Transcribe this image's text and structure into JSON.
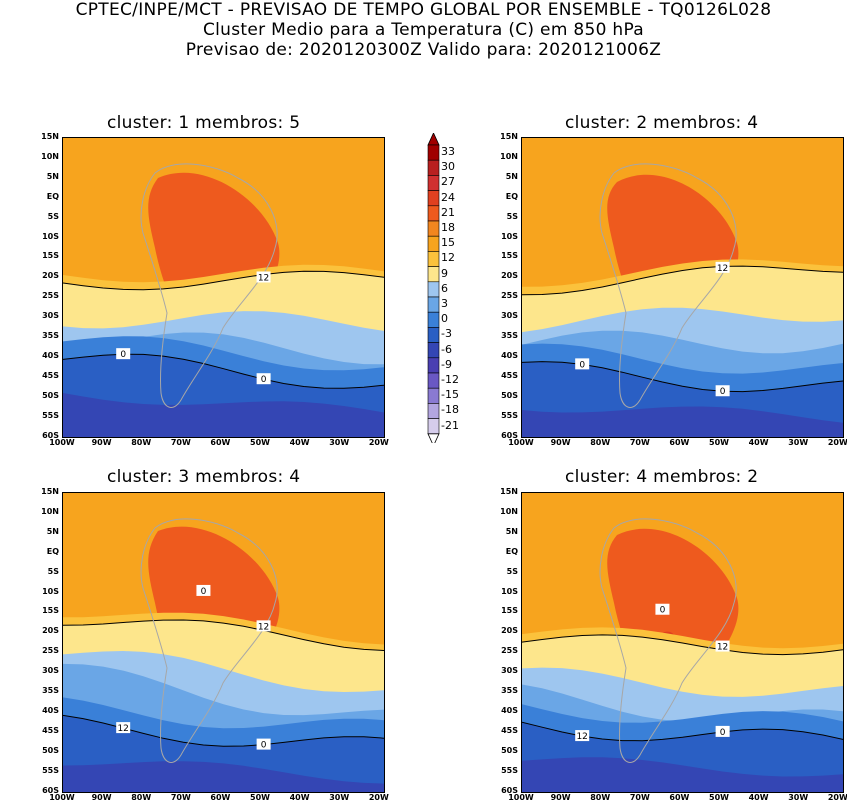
{
  "header": {
    "line1": "CPTEC/INPE/MCT - PREVISAO DE TEMPO GLOBAL POR ENSEMBLE - TQ0126L028",
    "line2": "Cluster Medio para a Temperatura (C) em 850 hPa",
    "line3": "Previsao de: 2020120300Z   Valido para: 2020121006Z"
  },
  "axes": {
    "lat_labels": [
      "15N",
      "10N",
      "5N",
      "EQ",
      "5S",
      "10S",
      "15S",
      "20S",
      "25S",
      "30S",
      "35S",
      "40S",
      "45S",
      "50S",
      "55S",
      "60S"
    ],
    "lon_labels": [
      "100W",
      "90W",
      "80W",
      "70W",
      "60W",
      "50W",
      "40W",
      "30W",
      "20W"
    ]
  },
  "colorbar": {
    "levels": [
      "33",
      "30",
      "27",
      "24",
      "21",
      "18",
      "15",
      "12",
      "9",
      "6",
      "3",
      "0",
      "-3",
      "-6",
      "-9",
      "-12",
      "-15",
      "-18",
      "-21"
    ],
    "colors": [
      "#a00000",
      "#b82020",
      "#d03030",
      "#e04020",
      "#ee5a1e",
      "#f2861f",
      "#f7a41e",
      "#fbc23c",
      "#fde68c",
      "#9ec6ef",
      "#6aa6e6",
      "#3a80d8",
      "#2a5fc4",
      "#3446b4",
      "#4a3fb2",
      "#6a58c4",
      "#8a7ad2",
      "#b3a6e0",
      "#d6cdec"
    ]
  },
  "panels": [
    {
      "title": "cluster: 1   membros: 5",
      "labels": [
        "12",
        "0",
        "0"
      ]
    },
    {
      "title": "cluster: 2   membros: 4",
      "labels": [
        "12",
        "0",
        "0"
      ]
    },
    {
      "title": "cluster: 3   membros: 4",
      "labels": [
        "12",
        "12",
        "0",
        "0"
      ]
    },
    {
      "title": "cluster: 4   membros: 2",
      "labels": [
        "12",
        "12",
        "0",
        "0"
      ]
    }
  ]
}
